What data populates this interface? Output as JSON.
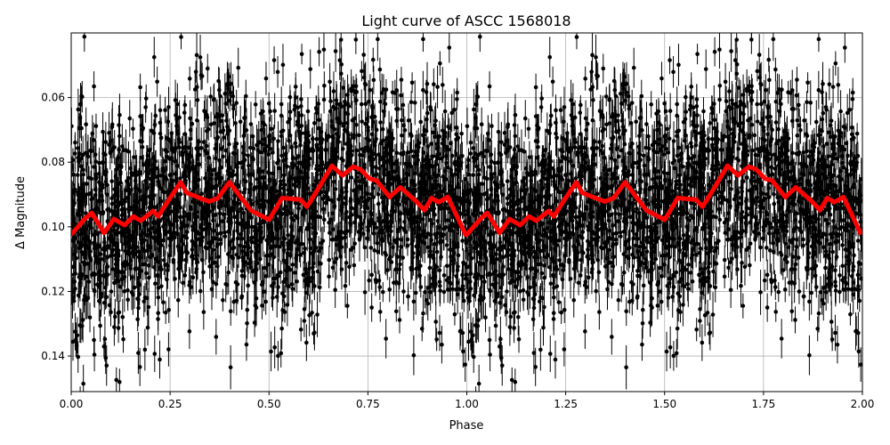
{
  "chart_data": {
    "type": "scatter",
    "title": "Light curve of ASCC 1568018",
    "xlabel": "Phase",
    "ylabel": "Δ Magnitude",
    "xlim": [
      0.0,
      2.0
    ],
    "ylim": [
      0.151,
      0.04
    ],
    "y_inverted": true,
    "grid": true,
    "x_ticks": [
      "0.00",
      "0.25",
      "0.50",
      "0.75",
      "1.00",
      "1.25",
      "1.50",
      "1.75",
      "2.00"
    ],
    "y_ticks": [
      "0.06",
      "0.08",
      "0.10",
      "0.12",
      "0.14"
    ],
    "series": [
      {
        "type": "errorbar-scatter",
        "color": "#000000",
        "repeats_every_phase": 1.0
      },
      {
        "type": "line",
        "color": "#ff0000",
        "repeats_every_phase": 1.0,
        "x": [
          0.0,
          0.034,
          0.052,
          0.083,
          0.108,
          0.135,
          0.157,
          0.176,
          0.207,
          0.22,
          0.247,
          0.277,
          0.292,
          0.349,
          0.371,
          0.4,
          0.454,
          0.5,
          0.533,
          0.58,
          0.596,
          0.625,
          0.659,
          0.686,
          0.713,
          0.731,
          0.754,
          0.772,
          0.805,
          0.832,
          0.873,
          0.893,
          0.911,
          0.929,
          0.952,
          0.997
        ],
        "y": [
          0.1024,
          0.0976,
          0.0957,
          0.1019,
          0.0976,
          0.0995,
          0.0968,
          0.0981,
          0.0951,
          0.0968,
          0.0916,
          0.0862,
          0.0895,
          0.0922,
          0.0911,
          0.0862,
          0.0949,
          0.0978,
          0.0911,
          0.0916,
          0.0938,
          0.0881,
          0.0811,
          0.0841,
          0.0814,
          0.0822,
          0.0851,
          0.0857,
          0.0908,
          0.0878,
          0.0922,
          0.0949,
          0.0911,
          0.0924,
          0.0908,
          0.1024
        ]
      }
    ]
  }
}
